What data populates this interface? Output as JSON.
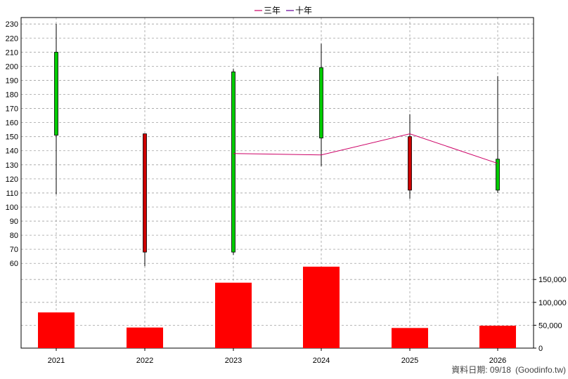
{
  "chart_data": {
    "type": "candlestick",
    "categories": [
      "2021",
      "2022",
      "2023",
      "2024",
      "2025",
      "2026"
    ],
    "candles": [
      {
        "x": "2021",
        "open": 151,
        "close": 210,
        "high": 230,
        "low": 109
      },
      {
        "x": "2022",
        "open": 152,
        "close": 68,
        "high": 152,
        "low": 58
      },
      {
        "x": "2023",
        "open": 68,
        "close": 196,
        "high": 198,
        "low": 66
      },
      {
        "x": "2024",
        "open": 149,
        "close": 199,
        "high": 216,
        "low": 129
      },
      {
        "x": "2025",
        "open": 150,
        "close": 112,
        "high": 166,
        "low": 106
      },
      {
        "x": "2026",
        "open": 112,
        "close": 134,
        "high": 193,
        "low": 110
      }
    ],
    "legend": [
      {
        "name": "三年",
        "color": "#cc0066"
      },
      {
        "name": "十年",
        "color": "#660099"
      }
    ],
    "ma_series": [
      {
        "name": "三年",
        "color": "#cc0066",
        "points": [
          {
            "x": "2023",
            "y": 138
          },
          {
            "x": "2024",
            "y": 137
          },
          {
            "x": "2025",
            "y": 152
          },
          {
            "x": "2026",
            "y": 131
          }
        ]
      }
    ],
    "price_axis": {
      "ylim": [
        55,
        232
      ],
      "ticks": [
        60,
        70,
        80,
        90,
        100,
        110,
        120,
        130,
        140,
        150,
        160,
        170,
        180,
        190,
        200,
        210,
        220,
        230
      ]
    },
    "volume": {
      "values": [
        78000,
        45000,
        143000,
        178000,
        44000,
        49000
      ],
      "color": "#ff0000",
      "ylim": [
        0,
        178000
      ],
      "ticks": [
        0,
        50000,
        100000,
        150000
      ],
      "tick_labels": [
        "0",
        "50,000",
        "100,000",
        "150,000"
      ]
    },
    "colors": {
      "up": "#00cc00",
      "down": "#cc0000",
      "grid": "#a0a0a0"
    },
    "grid": true
  },
  "footer": {
    "date_label": "資料日期: 09/18",
    "source": "(Goodinfo.tw)"
  }
}
